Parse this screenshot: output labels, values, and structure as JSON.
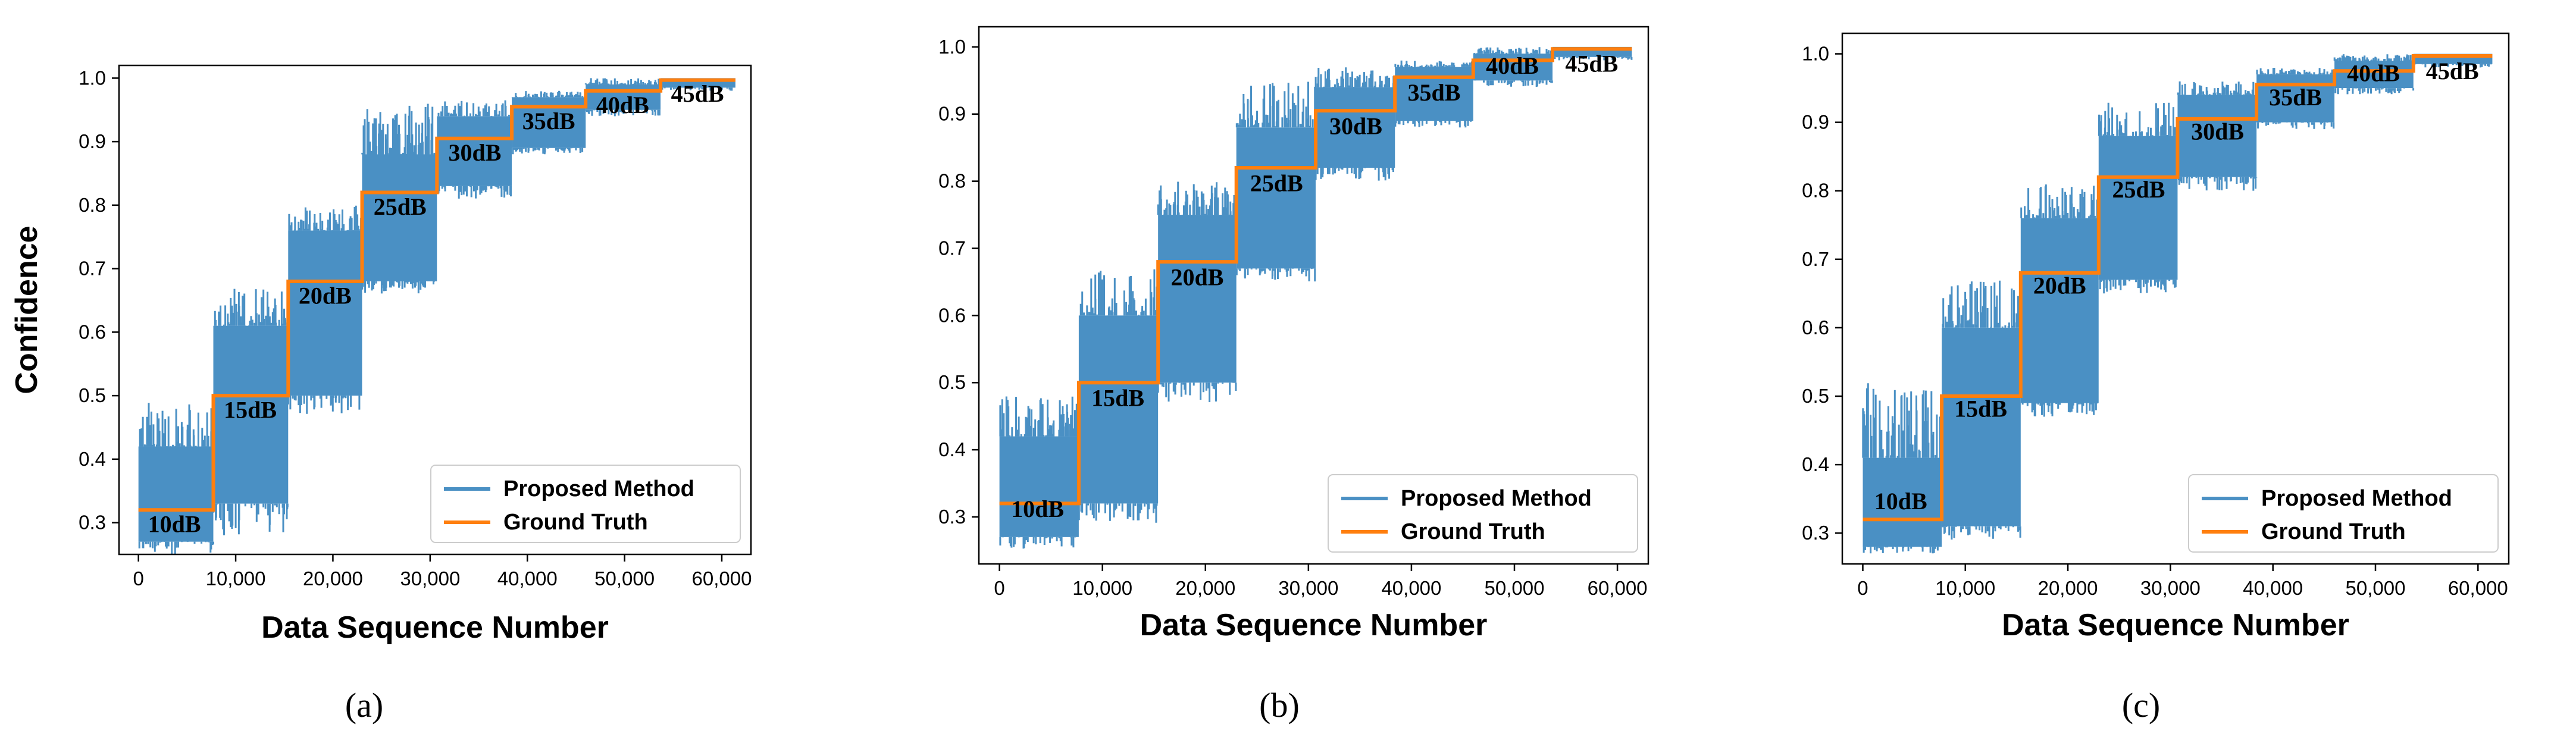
{
  "colors": {
    "proposed": "#4A90C4",
    "truth": "#FF7F0E",
    "frame": "#000000"
  },
  "chart_data": [
    {
      "type": "line",
      "panel_label": "(a)",
      "ylabel": "Confidence",
      "xlabel": "Data Sequence Number",
      "xlim": [
        -2000,
        63000
      ],
      "ylim": [
        0.25,
        1.02
      ],
      "xticks": [
        0,
        10000,
        20000,
        30000,
        40000,
        50000,
        60000
      ],
      "xtick_labels": [
        "0",
        "10,000",
        "20,000",
        "30,000",
        "40,000",
        "50,000",
        "60,000"
      ],
      "yticks": [
        0.3,
        0.4,
        0.5,
        0.6,
        0.7,
        0.8,
        0.9,
        1.0
      ],
      "ytick_labels": [
        "0.3",
        "0.4",
        "0.5",
        "0.6",
        "0.7",
        "0.8",
        "0.9",
        "1.0"
      ],
      "legend": [
        "Proposed Method",
        "Ground Truth"
      ],
      "legend_position": "lower-right",
      "series": [
        {
          "name": "Ground Truth",
          "steps": [
            {
              "x0": 0,
              "x1": 7700,
              "y": 0.32
            },
            {
              "x0": 7700,
              "x1": 15400,
              "y": 0.5
            },
            {
              "x0": 15400,
              "x1": 23000,
              "y": 0.68
            },
            {
              "x0": 23000,
              "x1": 30700,
              "y": 0.82
            },
            {
              "x0": 30700,
              "x1": 38400,
              "y": 0.905
            },
            {
              "x0": 38400,
              "x1": 46000,
              "y": 0.955
            },
            {
              "x0": 46000,
              "x1": 53700,
              "y": 0.98
            },
            {
              "x0": 53700,
              "x1": 61400,
              "y": 0.997
            }
          ]
        },
        {
          "name": "Proposed Method",
          "bands": [
            {
              "x0": 0,
              "x1": 7700,
              "lo": 0.27,
              "hi": 0.42,
              "spike_lo": 0.25,
              "spike_hi": 0.49
            },
            {
              "x0": 7700,
              "x1": 15400,
              "lo": 0.33,
              "hi": 0.61,
              "spike_lo": 0.28,
              "spike_hi": 0.67
            },
            {
              "x0": 15400,
              "x1": 23000,
              "lo": 0.5,
              "hi": 0.76,
              "spike_lo": 0.47,
              "spike_hi": 0.8
            },
            {
              "x0": 23000,
              "x1": 30700,
              "lo": 0.68,
              "hi": 0.88,
              "spike_lo": 0.66,
              "spike_hi": 0.96
            },
            {
              "x0": 30700,
              "x1": 38400,
              "lo": 0.83,
              "hi": 0.94,
              "spike_lo": 0.81,
              "spike_hi": 0.97
            },
            {
              "x0": 38400,
              "x1": 46000,
              "lo": 0.89,
              "hi": 0.97,
              "spike_lo": 0.88,
              "spike_hi": 0.98
            },
            {
              "x0": 46000,
              "x1": 53700,
              "lo": 0.95,
              "hi": 0.99,
              "spike_lo": 0.94,
              "spike_hi": 1.0
            },
            {
              "x0": 53700,
              "x1": 61400,
              "lo": 0.985,
              "hi": 1.0,
              "spike_lo": 0.98,
              "spike_hi": 1.0
            }
          ]
        }
      ],
      "annotations": [
        {
          "text": "10dB",
          "x": 3700,
          "y": 0.285
        },
        {
          "text": "15dB",
          "x": 11500,
          "y": 0.465
        },
        {
          "text": "20dB",
          "x": 19200,
          "y": 0.645
        },
        {
          "text": "25dB",
          "x": 26900,
          "y": 0.785
        },
        {
          "text": "30dB",
          "x": 34600,
          "y": 0.87
        },
        {
          "text": "35dB",
          "x": 42200,
          "y": 0.92
        },
        {
          "text": "40dB",
          "x": 49800,
          "y": 0.945
        },
        {
          "text": "45dB",
          "x": 57500,
          "y": 0.963
        }
      ]
    },
    {
      "type": "line",
      "panel_label": "(b)",
      "ylabel": "",
      "xlabel": "Data Sequence  Number",
      "xlim": [
        -2000,
        63000
      ],
      "ylim": [
        0.23,
        1.03
      ],
      "xticks": [
        0,
        10000,
        20000,
        30000,
        40000,
        50000,
        60000
      ],
      "xtick_labels": [
        "0",
        "10,000",
        "20,000",
        "30,000",
        "40,000",
        "50,000",
        "60,000"
      ],
      "yticks": [
        0.3,
        0.4,
        0.5,
        0.6,
        0.7,
        0.8,
        0.9,
        1.0
      ],
      "ytick_labels": [
        "0.3",
        "0.4",
        "0.5",
        "0.6",
        "0.7",
        "0.8",
        "0.9",
        "1.0"
      ],
      "legend": [
        "Proposed Method",
        "Ground Truth"
      ],
      "legend_position": "lower-right",
      "series": [
        {
          "name": "Ground Truth",
          "steps": [
            {
              "x0": 0,
              "x1": 7700,
              "y": 0.32
            },
            {
              "x0": 7700,
              "x1": 15400,
              "y": 0.5
            },
            {
              "x0": 15400,
              "x1": 23000,
              "y": 0.68
            },
            {
              "x0": 23000,
              "x1": 30700,
              "y": 0.82
            },
            {
              "x0": 30700,
              "x1": 38400,
              "y": 0.905
            },
            {
              "x0": 38400,
              "x1": 46000,
              "y": 0.955
            },
            {
              "x0": 46000,
              "x1": 53700,
              "y": 0.98
            },
            {
              "x0": 53700,
              "x1": 61400,
              "y": 0.997
            }
          ]
        },
        {
          "name": "Proposed Method",
          "bands": [
            {
              "x0": 0,
              "x1": 7700,
              "lo": 0.27,
              "hi": 0.42,
              "spike_lo": 0.25,
              "spike_hi": 0.48
            },
            {
              "x0": 7700,
              "x1": 15400,
              "lo": 0.32,
              "hi": 0.6,
              "spike_lo": 0.29,
              "spike_hi": 0.67
            },
            {
              "x0": 15400,
              "x1": 23000,
              "lo": 0.5,
              "hi": 0.75,
              "spike_lo": 0.47,
              "spike_hi": 0.8
            },
            {
              "x0": 23000,
              "x1": 30700,
              "lo": 0.67,
              "hi": 0.88,
              "spike_lo": 0.65,
              "spike_hi": 0.95
            },
            {
              "x0": 30700,
              "x1": 38400,
              "lo": 0.82,
              "hi": 0.94,
              "spike_lo": 0.8,
              "spike_hi": 0.97
            },
            {
              "x0": 38400,
              "x1": 46000,
              "lo": 0.89,
              "hi": 0.97,
              "spike_lo": 0.88,
              "spike_hi": 0.98
            },
            {
              "x0": 46000,
              "x1": 53700,
              "lo": 0.95,
              "hi": 0.99,
              "spike_lo": 0.94,
              "spike_hi": 1.0
            },
            {
              "x0": 53700,
              "x1": 61400,
              "lo": 0.985,
              "hi": 1.0,
              "spike_lo": 0.98,
              "spike_hi": 1.0
            }
          ]
        }
      ],
      "annotations": [
        {
          "text": "10dB",
          "x": 3700,
          "y": 0.3
        },
        {
          "text": "15dB",
          "x": 11500,
          "y": 0.465
        },
        {
          "text": "20dB",
          "x": 19200,
          "y": 0.645
        },
        {
          "text": "25dB",
          "x": 26900,
          "y": 0.785
        },
        {
          "text": "30dB",
          "x": 34600,
          "y": 0.87
        },
        {
          "text": "35dB",
          "x": 42200,
          "y": 0.92
        },
        {
          "text": "40dB",
          "x": 49800,
          "y": 0.96
        },
        {
          "text": "45dB",
          "x": 57500,
          "y": 0.963
        }
      ]
    },
    {
      "type": "line",
      "panel_label": "(c)",
      "ylabel": "",
      "xlabel": "Data Sequence  Number",
      "xlim": [
        -2000,
        63000
      ],
      "ylim": [
        0.255,
        1.03
      ],
      "xticks": [
        0,
        10000,
        20000,
        30000,
        40000,
        50000,
        60000
      ],
      "xtick_labels": [
        "0",
        "10,000",
        "20,000",
        "30,000",
        "40,000",
        "50,000",
        "60,000"
      ],
      "yticks": [
        0.3,
        0.4,
        0.5,
        0.6,
        0.7,
        0.8,
        0.9,
        1.0
      ],
      "ytick_labels": [
        "0.3",
        "0.4",
        "0.5",
        "0.6",
        "0.7",
        "0.8",
        "0.9",
        "1.0"
      ],
      "legend": [
        "Proposed Method",
        "Ground Truth"
      ],
      "legend_position": "lower-right",
      "series": [
        {
          "name": "Ground Truth",
          "steps": [
            {
              "x0": 0,
              "x1": 7700,
              "y": 0.32
            },
            {
              "x0": 7700,
              "x1": 15400,
              "y": 0.5
            },
            {
              "x0": 15400,
              "x1": 23000,
              "y": 0.68
            },
            {
              "x0": 23000,
              "x1": 30700,
              "y": 0.82
            },
            {
              "x0": 30700,
              "x1": 38400,
              "y": 0.905
            },
            {
              "x0": 38400,
              "x1": 46000,
              "y": 0.955
            },
            {
              "x0": 46000,
              "x1": 53700,
              "y": 0.975
            },
            {
              "x0": 53700,
              "x1": 61400,
              "y": 0.997
            }
          ]
        },
        {
          "name": "Proposed Method",
          "bands": [
            {
              "x0": 0,
              "x1": 7700,
              "lo": 0.28,
              "hi": 0.41,
              "spike_lo": 0.27,
              "spike_hi": 0.52
            },
            {
              "x0": 7700,
              "x1": 15400,
              "lo": 0.31,
              "hi": 0.6,
              "spike_lo": 0.29,
              "spike_hi": 0.67
            },
            {
              "x0": 15400,
              "x1": 23000,
              "lo": 0.49,
              "hi": 0.76,
              "spike_lo": 0.47,
              "spike_hi": 0.81
            },
            {
              "x0": 23000,
              "x1": 30700,
              "lo": 0.67,
              "hi": 0.88,
              "spike_lo": 0.65,
              "spike_hi": 0.93
            },
            {
              "x0": 30700,
              "x1": 38400,
              "lo": 0.82,
              "hi": 0.94,
              "spike_lo": 0.8,
              "spike_hi": 0.96
            },
            {
              "x0": 38400,
              "x1": 46000,
              "lo": 0.9,
              "hi": 0.97,
              "spike_lo": 0.89,
              "spike_hi": 0.98
            },
            {
              "x0": 46000,
              "x1": 53700,
              "lo": 0.95,
              "hi": 0.99,
              "spike_lo": 0.94,
              "spike_hi": 1.0
            },
            {
              "x0": 53700,
              "x1": 61400,
              "lo": 0.985,
              "hi": 1.0,
              "spike_lo": 0.98,
              "spike_hi": 1.0
            }
          ]
        }
      ],
      "annotations": [
        {
          "text": "10dB",
          "x": 3700,
          "y": 0.335
        },
        {
          "text": "15dB",
          "x": 11500,
          "y": 0.47
        },
        {
          "text": "20dB",
          "x": 19200,
          "y": 0.65
        },
        {
          "text": "25dB",
          "x": 26900,
          "y": 0.79
        },
        {
          "text": "30dB",
          "x": 34600,
          "y": 0.875
        },
        {
          "text": "35dB",
          "x": 42200,
          "y": 0.925
        },
        {
          "text": "40dB",
          "x": 49800,
          "y": 0.96
        },
        {
          "text": "45dB",
          "x": 57500,
          "y": 0.963
        }
      ]
    }
  ]
}
